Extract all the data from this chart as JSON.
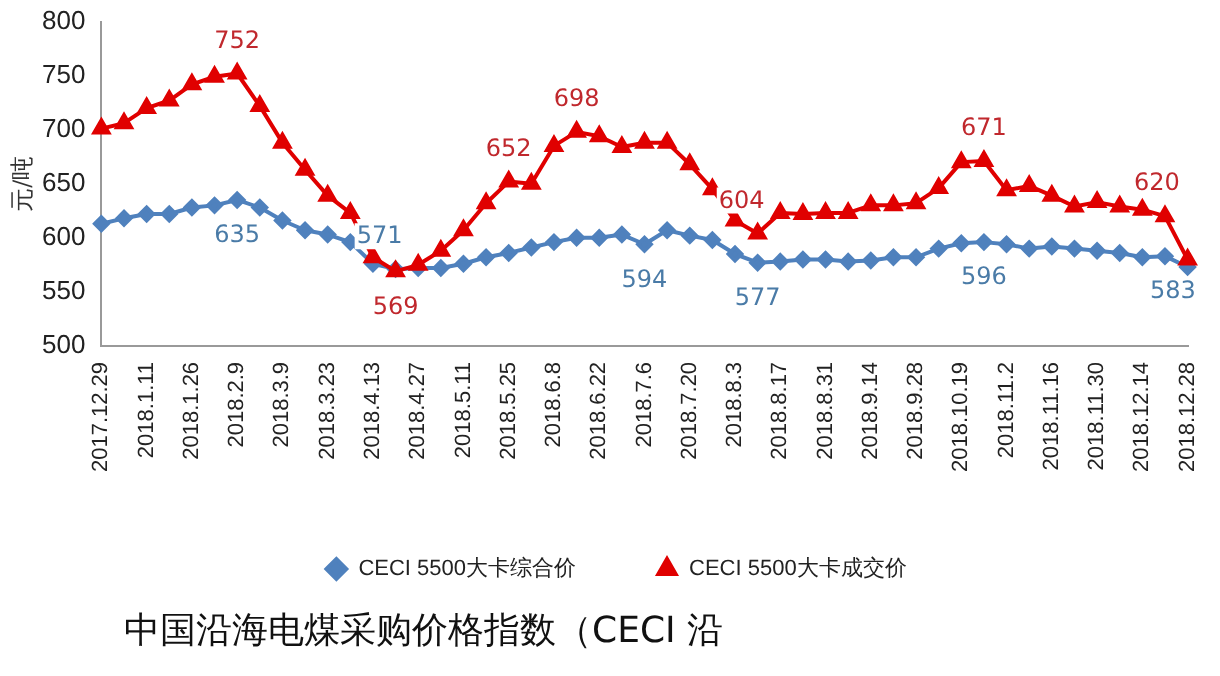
{
  "chart_data": {
    "type": "line",
    "title": "中国沿海电煤采购价格指数（CECI 沿",
    "ylabel": "元/吨",
    "categories": [
      "2017.12.29",
      null,
      "2018.1.11",
      null,
      "2018.1.26",
      null,
      "2018.2.9",
      null,
      "2018.3.9",
      null,
      "2018.3.23",
      null,
      "2018.4.13",
      null,
      "2018.4.27",
      null,
      "2018.5.11",
      null,
      "2018.5.25",
      null,
      "2018.6.8",
      null,
      "2018.6.22",
      null,
      "2018.7.6",
      null,
      "2018.7.20",
      null,
      "2018.8.3",
      null,
      "2018.8.17",
      null,
      "2018.8.31",
      null,
      "2018.9.14",
      null,
      "2018.9.28",
      null,
      "2018.10.19",
      null,
      "2018.11.2",
      null,
      "2018.11.16",
      null,
      "2018.11.30",
      null,
      "2018.12.14",
      null,
      "2018.12.28"
    ],
    "series": [
      {
        "name": "CECI 5500大卡综合价",
        "color": "#4f81bd",
        "marker": "diamond",
        "values": [
          613,
          618,
          622,
          622,
          628,
          630,
          635,
          628,
          616,
          607,
          603,
          596,
          576,
          571,
          572,
          572,
          576,
          582,
          586,
          591,
          596,
          600,
          600,
          603,
          594,
          607,
          602,
          598,
          585,
          577,
          578,
          580,
          580,
          578,
          579,
          582,
          582,
          590,
          595,
          596,
          594,
          590,
          592,
          590,
          588,
          586,
          582,
          583,
          573
        ],
        "value_labels": [
          null,
          null,
          null,
          null,
          null,
          null,
          "635",
          null,
          null,
          null,
          null,
          null,
          null,
          "571",
          null,
          null,
          null,
          null,
          null,
          null,
          null,
          null,
          null,
          null,
          "594",
          null,
          null,
          null,
          null,
          "577",
          null,
          null,
          null,
          null,
          null,
          null,
          null,
          null,
          null,
          "596",
          null,
          null,
          null,
          null,
          null,
          null,
          null,
          "583",
          null
        ]
      },
      {
        "name": "CECI 5500大卡成交价",
        "color": "#e00000",
        "marker": "triangle",
        "values": [
          701,
          706,
          720,
          727,
          742,
          749,
          752,
          722,
          688,
          663,
          639,
          623,
          582,
          569,
          575,
          588,
          607,
          632,
          652,
          650,
          685,
          698,
          694,
          684,
          688,
          688,
          668,
          645,
          616,
          604,
          623,
          622,
          623,
          623,
          630,
          630,
          632,
          646,
          670,
          671,
          644,
          648,
          639,
          629,
          633,
          629,
          626,
          620,
          580
        ],
        "value_labels": [
          null,
          null,
          null,
          null,
          null,
          null,
          "752",
          null,
          null,
          null,
          null,
          null,
          null,
          "569",
          null,
          null,
          null,
          null,
          "652",
          null,
          null,
          "698",
          null,
          null,
          null,
          null,
          null,
          null,
          null,
          "604",
          null,
          null,
          null,
          null,
          null,
          null,
          null,
          null,
          null,
          "671",
          null,
          null,
          null,
          null,
          null,
          null,
          null,
          "620",
          null
        ]
      }
    ],
    "ylim": [
      500,
      800
    ],
    "yticks": [
      500,
      550,
      600,
      650,
      700,
      750,
      800
    ],
    "grid": false,
    "legend": "bottom",
    "line_style": "solid"
  }
}
